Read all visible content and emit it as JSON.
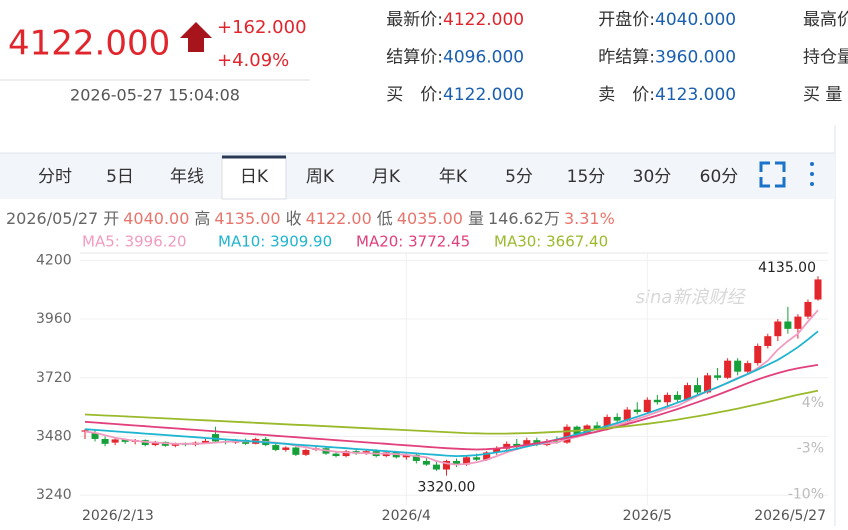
{
  "header": {
    "price": "4122.000",
    "change": "+162.000",
    "change_pct": "+4.09%",
    "time": "2026-05-27 15:04:08"
  },
  "quotes": [
    [
      {
        "label": "最新价:",
        "value": "4122.000"
      },
      {
        "label": "开盘价:",
        "value": "4040.000"
      },
      {
        "label": "最高价",
        "value": null
      }
    ],
    [
      {
        "label": "结算价:",
        "value": "4096.000"
      },
      {
        "label": "昨结算:",
        "value": "3960.000"
      },
      {
        "label": "持仓量",
        "value": null
      }
    ],
    [
      {
        "label": "买　价:",
        "value": "4122.000"
      },
      {
        "label": "卖　价:",
        "value": "4123.000"
      },
      {
        "label": "买 量",
        "value": null
      }
    ]
  ],
  "tabs": [
    "分时",
    "5日",
    "年线",
    "日K",
    "周K",
    "月K",
    "年K",
    "5分",
    "15分",
    "30分",
    "60分"
  ],
  "selected_tab": 3,
  "info": [
    {
      "label": "2026/05/27",
      "value": null
    },
    {
      "label": "开",
      "value": "4040.00"
    },
    {
      "label": "高",
      "value": "4135.00"
    },
    {
      "label": "收",
      "value": "4122.00"
    },
    {
      "label": "低",
      "value": "4035.00"
    },
    {
      "label": "量",
      "value": "146.62万"
    },
    {
      "label": null,
      "value": "3.31%"
    }
  ],
  "chart_data": {
    "type": "candlestick",
    "watermark": "sina新浪财经",
    "categories": [
      "2026/2/13",
      null,
      null,
      null,
      null,
      null,
      null,
      null,
      null,
      null,
      null,
      null,
      null,
      null,
      null,
      null,
      null,
      null,
      null,
      null,
      null,
      null,
      null,
      null,
      null,
      null,
      null,
      null,
      null,
      null,
      null,
      null,
      "2026/4",
      null,
      null,
      null,
      null,
      null,
      null,
      null,
      null,
      null,
      null,
      null,
      null,
      null,
      null,
      null,
      null,
      null,
      null,
      null,
      null,
      null,
      null,
      null,
      "2026/5",
      null,
      null,
      null,
      null,
      null,
      null,
      null,
      null,
      null,
      null,
      null,
      null,
      null,
      null,
      null,
      null,
      "2026/5/27"
    ],
    "ohlc": [
      [
        3500,
        3510,
        3470,
        3505
      ],
      [
        3495,
        3505,
        3460,
        3470
      ],
      [
        3470,
        3480,
        3440,
        3450
      ],
      [
        3455,
        3475,
        3445,
        3468
      ],
      [
        3468,
        3472,
        3450,
        3458
      ],
      [
        3458,
        3470,
        3448,
        3465
      ],
      [
        3465,
        3468,
        3440,
        3445
      ],
      [
        3445,
        3462,
        3440,
        3458
      ],
      [
        3458,
        3460,
        3438,
        3442
      ],
      [
        3442,
        3455,
        3436,
        3450
      ],
      [
        3450,
        3456,
        3440,
        3446
      ],
      [
        3446,
        3460,
        3440,
        3455
      ],
      [
        3455,
        3470,
        3450,
        3462
      ],
      [
        3490,
        3520,
        3455,
        3460
      ],
      [
        3460,
        3468,
        3448,
        3455
      ],
      [
        3455,
        3470,
        3450,
        3466
      ],
      [
        3466,
        3472,
        3445,
        3450
      ],
      [
        3450,
        3475,
        3448,
        3470
      ],
      [
        3470,
        3478,
        3440,
        3445
      ],
      [
        3445,
        3452,
        3420,
        3425
      ],
      [
        3425,
        3440,
        3418,
        3435
      ],
      [
        3435,
        3438,
        3400,
        3405
      ],
      [
        3405,
        3430,
        3400,
        3425
      ],
      [
        3425,
        3440,
        3420,
        3432
      ],
      [
        3432,
        3436,
        3405,
        3410
      ],
      [
        3410,
        3418,
        3395,
        3400
      ],
      [
        3400,
        3425,
        3395,
        3420
      ],
      [
        3420,
        3430,
        3405,
        3410
      ],
      [
        3410,
        3425,
        3405,
        3420
      ],
      [
        3420,
        3428,
        3395,
        3400
      ],
      [
        3400,
        3420,
        3395,
        3415
      ],
      [
        3415,
        3418,
        3390,
        3395
      ],
      [
        3395,
        3410,
        3385,
        3405
      ],
      [
        3405,
        3410,
        3370,
        3380
      ],
      [
        3380,
        3395,
        3360,
        3365
      ],
      [
        3365,
        3380,
        3340,
        3345
      ],
      [
        3345,
        3385,
        3320,
        3380
      ],
      [
        3380,
        3390,
        3355,
        3365
      ],
      [
        3365,
        3400,
        3360,
        3395
      ],
      [
        3395,
        3410,
        3380,
        3385
      ],
      [
        3385,
        3420,
        3380,
        3415
      ],
      [
        3415,
        3440,
        3405,
        3430
      ],
      [
        3430,
        3460,
        3420,
        3450
      ],
      [
        3450,
        3470,
        3430,
        3440
      ],
      [
        3440,
        3475,
        3435,
        3465
      ],
      [
        3465,
        3475,
        3440,
        3445
      ],
      [
        3445,
        3470,
        3440,
        3460
      ],
      [
        3460,
        3480,
        3450,
        3455
      ],
      [
        3455,
        3530,
        3450,
        3520
      ],
      [
        3520,
        3525,
        3480,
        3490
      ],
      [
        3490,
        3530,
        3485,
        3525
      ],
      [
        3525,
        3540,
        3505,
        3510
      ],
      [
        3510,
        3570,
        3505,
        3560
      ],
      [
        3560,
        3575,
        3535,
        3545
      ],
      [
        3545,
        3600,
        3540,
        3590
      ],
      [
        3590,
        3620,
        3570,
        3580
      ],
      [
        3580,
        3640,
        3575,
        3630
      ],
      [
        3630,
        3650,
        3610,
        3620
      ],
      [
        3620,
        3660,
        3600,
        3650
      ],
      [
        3650,
        3665,
        3620,
        3630
      ],
      [
        3630,
        3700,
        3625,
        3690
      ],
      [
        3690,
        3720,
        3650,
        3660
      ],
      [
        3660,
        3740,
        3655,
        3730
      ],
      [
        3730,
        3760,
        3710,
        3720
      ],
      [
        3720,
        3800,
        3715,
        3790
      ],
      [
        3790,
        3800,
        3730,
        3745
      ],
      [
        3745,
        3790,
        3740,
        3780
      ],
      [
        3780,
        3860,
        3770,
        3850
      ],
      [
        3850,
        3900,
        3840,
        3890
      ],
      [
        3890,
        3960,
        3870,
        3950
      ],
      [
        3950,
        4010,
        3900,
        3920
      ],
      [
        3920,
        3980,
        3880,
        3970
      ],
      [
        3970,
        4040,
        3960,
        4030
      ],
      [
        4040,
        4135,
        4035,
        4122
      ]
    ],
    "up_color": "#e3262c",
    "down_color": "#16a03a",
    "series": [
      {
        "name": "MA5",
        "legend": "MA5: 3996.20",
        "color": "#f29bc1",
        "values": [
          3500,
          3495,
          3485,
          3475,
          3468,
          3462,
          3458,
          3455,
          3453,
          3450,
          3450,
          3450,
          3452,
          3455,
          3458,
          3460,
          3460,
          3460,
          3458,
          3455,
          3450,
          3442,
          3436,
          3428,
          3423,
          3418,
          3415,
          3413,
          3412,
          3410,
          3410,
          3408,
          3405,
          3400,
          3395,
          3380,
          3370,
          3365,
          3368,
          3375,
          3385,
          3400,
          3415,
          3428,
          3440,
          3448,
          3452,
          3455,
          3470,
          3478,
          3490,
          3500,
          3515,
          3528,
          3538,
          3552,
          3565,
          3580,
          3595,
          3605,
          3625,
          3645,
          3665,
          3680,
          3700,
          3720,
          3735,
          3760,
          3790,
          3835,
          3870,
          3900,
          3950,
          3996.2
        ]
      },
      {
        "name": "MA10",
        "legend": "MA10: 3909.90",
        "color": "#1fb5d0",
        "values": [
          3510,
          3507,
          3504,
          3501,
          3498,
          3495,
          3492,
          3489,
          3486,
          3483,
          3480,
          3477,
          3474,
          3471,
          3468,
          3465,
          3462,
          3459,
          3456,
          3453,
          3450,
          3447,
          3444,
          3441,
          3438,
          3435,
          3432,
          3429,
          3426,
          3423,
          3420,
          3417,
          3414,
          3411,
          3408,
          3405,
          3402,
          3400,
          3401,
          3404,
          3409,
          3415,
          3422,
          3430,
          3439,
          3448,
          3458,
          3468,
          3478,
          3489,
          3500,
          3511,
          3523,
          3535,
          3548,
          3561,
          3575,
          3589,
          3603,
          3618,
          3633,
          3649,
          3665,
          3682,
          3699,
          3717,
          3735,
          3754,
          3773,
          3793,
          3818,
          3845,
          3877,
          3909.9
        ]
      },
      {
        "name": "MA20",
        "legend": "MA20: 3772.45",
        "color": "#e2407c",
        "values": [
          3540,
          3537,
          3534,
          3531,
          3528,
          3525,
          3522,
          3519,
          3516,
          3513,
          3510,
          3507,
          3504,
          3501,
          3498,
          3495,
          3492,
          3489,
          3486,
          3483,
          3480,
          3477,
          3474,
          3471,
          3468,
          3465,
          3462,
          3459,
          3456,
          3453,
          3450,
          3447,
          3444,
          3441,
          3438,
          3435,
          3432,
          3430,
          3428,
          3427,
          3428,
          3431,
          3435,
          3440,
          3446,
          3452,
          3459,
          3466,
          3474,
          3482,
          3491,
          3500,
          3510,
          3520,
          3531,
          3542,
          3554,
          3566,
          3579,
          3592,
          3606,
          3620,
          3635,
          3650,
          3666,
          3682,
          3698,
          3713,
          3727,
          3739,
          3750,
          3759,
          3766,
          3772.45
        ]
      },
      {
        "name": "MA30",
        "legend": "MA30: 3667.40",
        "color": "#9aba2c",
        "values": [
          3570,
          3568,
          3566,
          3564,
          3562,
          3560,
          3558,
          3556,
          3554,
          3552,
          3550,
          3548,
          3546,
          3544,
          3542,
          3540,
          3538,
          3536,
          3534,
          3532,
          3530,
          3528,
          3526,
          3524,
          3522,
          3520,
          3518,
          3516,
          3514,
          3512,
          3510,
          3508,
          3506,
          3504,
          3502,
          3500,
          3498,
          3496,
          3494,
          3493,
          3492,
          3492,
          3492,
          3493,
          3494,
          3495,
          3497,
          3499,
          3501,
          3504,
          3507,
          3510,
          3514,
          3518,
          3522,
          3527,
          3532,
          3537,
          3543,
          3549,
          3556,
          3563,
          3570,
          3578,
          3586,
          3594,
          3603,
          3612,
          3621,
          3631,
          3641,
          3651,
          3659,
          3667.4
        ]
      }
    ],
    "annotations": [
      {
        "label": "4135.00",
        "value": 4135
      },
      {
        "label": "3320.00",
        "value": 3320
      }
    ],
    "ylim": [
      3200,
      4230
    ],
    "yticks": [
      4200,
      3960,
      3720,
      3480,
      3240
    ],
    "y2lim": [
      -11.6,
      26.9
    ],
    "y2ticks": [
      {
        "value": 4,
        "label": "4%"
      },
      {
        "value": -3,
        "label": "-3%"
      },
      {
        "value": -10,
        "label": "-10%"
      }
    ],
    "grid": true
  }
}
